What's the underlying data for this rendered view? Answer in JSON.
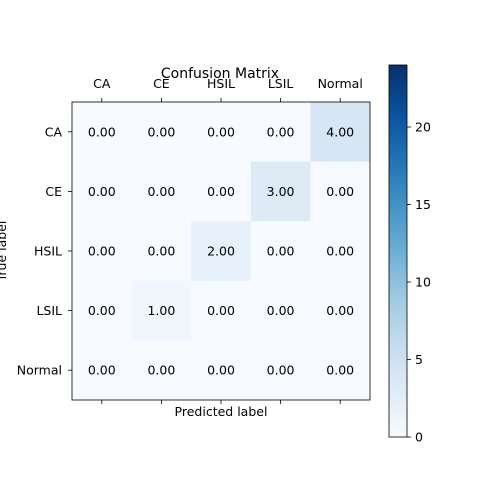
{
  "chart_data": {
    "type": "heatmap",
    "title": "Confusion Matrix",
    "xlabel": "Predicted label",
    "ylabel": "True label",
    "x_categories": [
      "CA",
      "CE",
      "HSIL",
      "LSIL",
      "Normal"
    ],
    "y_categories": [
      "CA",
      "CE",
      "HSIL",
      "LSIL",
      "Normal"
    ],
    "values": [
      [
        0,
        0,
        0,
        0,
        4
      ],
      [
        0,
        0,
        0,
        3,
        0
      ],
      [
        0,
        0,
        2,
        0,
        0
      ],
      [
        0,
        1,
        0,
        0,
        0
      ],
      [
        0,
        0,
        0,
        0,
        0
      ]
    ],
    "cell_labels": [
      [
        "0.00",
        "0.00",
        "0.00",
        "0.00",
        "4.00"
      ],
      [
        "0.00",
        "0.00",
        "0.00",
        "3.00",
        "0.00"
      ],
      [
        "0.00",
        "0.00",
        "2.00",
        "0.00",
        "0.00"
      ],
      [
        "0.00",
        "1.00",
        "0.00",
        "0.00",
        "0.00"
      ],
      [
        "0.00",
        "0.00",
        "0.00",
        "0.00",
        "0.00"
      ]
    ],
    "colormap": "Blues",
    "colorbar": {
      "range": [
        0,
        24
      ],
      "ticks": [
        0,
        5,
        10,
        15,
        20
      ],
      "tick_labels": [
        "0",
        "5",
        "10",
        "15",
        "20"
      ]
    }
  }
}
